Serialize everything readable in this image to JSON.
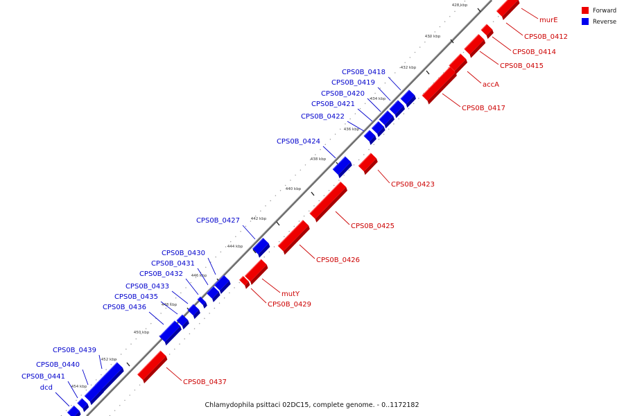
{
  "caption": "Chlamydophila psittaci 02DC15, complete genome. - 0..1172182",
  "legend": [
    {
      "label": "Forward",
      "color": "#ee0000"
    },
    {
      "label": "Reverse",
      "color": "#0000ee"
    }
  ],
  "colors": {
    "forward": "#ee0000",
    "reverse": "#0000ee",
    "forward_top": "#ff5a5a",
    "reverse_top": "#4a4aff",
    "forward_side": "#a80000",
    "reverse_side": "#0000a0",
    "backbone": "#8c8c8c"
  },
  "tick_labels": [
    "428 kbp",
    "430 kbp",
    "432 kbp",
    "434 kbp",
    "436 kbp",
    "438 kbp",
    "440 kbp",
    "442 kbp",
    "444 kbp",
    "446 kbp",
    "448 kbp",
    "450 kbp",
    "452 kbp",
    "454 kbp"
  ],
  "forward_genes": [
    "murE",
    "CPS0B_0412",
    "CPS0B_0414",
    "CPS0B_0415",
    "accA",
    "CPS0B_0417",
    "CPS0B_0423",
    "CPS0B_0425",
    "CPS0B_0426",
    "mutY",
    "CPS0B_0429",
    "CPS0B_0437"
  ],
  "reverse_genes": [
    "CPS0B_0418",
    "CPS0B_0419",
    "CPS0B_0420",
    "CPS0B_0421",
    "CPS0B_0422",
    "CPS0B_0424",
    "CPS0B_0427",
    "CPS0B_0430",
    "CPS0B_0431",
    "CPS0B_0432",
    "CPS0B_0433",
    "CPS0B_0435",
    "CPS0B_0436",
    "CPS0B_0439",
    "CPS0B_0440",
    "CPS0B_0441",
    "dcd"
  ]
}
